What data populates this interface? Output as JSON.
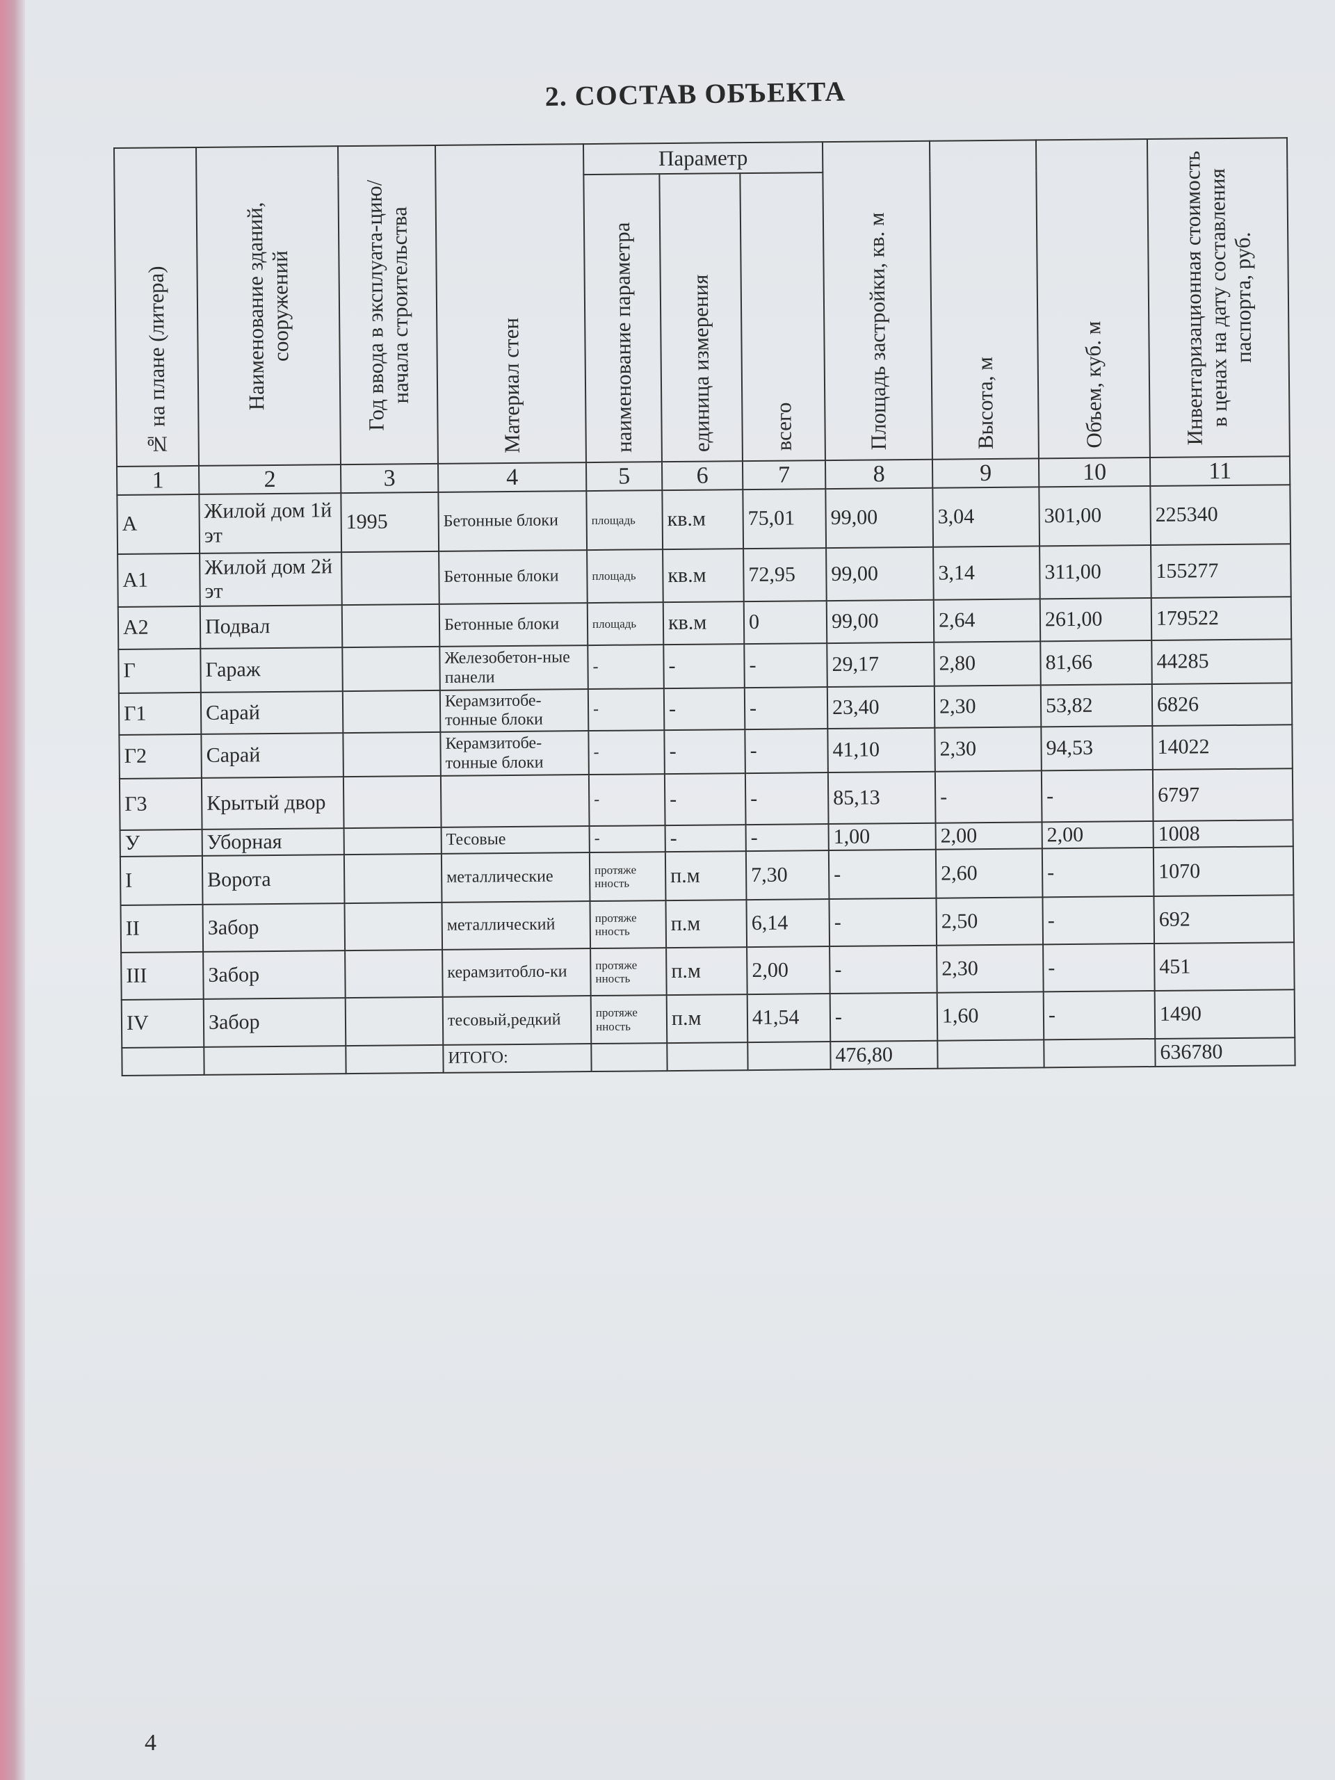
{
  "title": "2.   СОСТАВ ОБЪЕКТА",
  "headers": {
    "c1": "№ на плане (литера)",
    "c2": "Наименование зданий, сооружений",
    "c3": "Год ввода в эксплуата-цию/начала строительства",
    "c4": "Материал стен",
    "param": "Параметр",
    "c5": "наименование параметра",
    "c6": "единица измерения",
    "c7": "всего",
    "c8": "Площадь застройки, кв. м",
    "c9": "Высота, м",
    "c10": "Объем, куб. м",
    "c11": "Инвентаризационная стоимость в ценах на дату составления паспорта, руб."
  },
  "column_numbers": [
    "1",
    "2",
    "3",
    "4",
    "5",
    "6",
    "7",
    "8",
    "9",
    "10",
    "11"
  ],
  "rows": [
    [
      "А",
      "Жилой дом 1й эт",
      "1995",
      "Бетонные блоки",
      "площадь",
      "кв.м",
      "75,01",
      "99,00",
      "3,04",
      "301,00",
      "225340"
    ],
    [
      "А1",
      "Жилой дом 2й эт",
      "",
      "Бетонные блоки",
      "площадь",
      "кв.м",
      "72,95",
      "99,00",
      "3,14",
      "311,00",
      "155277"
    ],
    [
      "А2",
      "Подвал",
      "",
      "Бетонные блоки",
      "площадь",
      "кв.м",
      "0",
      "99,00",
      "2,64",
      "261,00",
      "179522"
    ],
    [
      "Г",
      "Гараж",
      "",
      "Железобетон-ные панели",
      "-",
      "-",
      "-",
      "29,17",
      "2,80",
      "81,66",
      "44285"
    ],
    [
      "Г1",
      "Сарай",
      "",
      "Керамзитобе-тонные блоки",
      "-",
      "-",
      "-",
      "23,40",
      "2,30",
      "53,82",
      "6826"
    ],
    [
      "Г2",
      "Сарай",
      "",
      "Керамзитобе-тонные блоки",
      "-",
      "-",
      "-",
      "41,10",
      "2,30",
      "94,53",
      "14022"
    ],
    [
      "Г3",
      "Крытый двор",
      "",
      "",
      "-",
      "-",
      "-",
      "85,13",
      "-",
      "-",
      "6797"
    ],
    [
      "У",
      "Уборная",
      "",
      "Тесовые",
      "-",
      "-",
      "-",
      "1,00",
      "2,00",
      "2,00",
      "1008"
    ],
    [
      "I",
      "Ворота",
      "",
      "металлические",
      "протяже нность",
      "п.м",
      "7,30",
      "-",
      "2,60",
      "-",
      "1070"
    ],
    [
      "II",
      "Забор",
      "",
      "металлический",
      "протяже нность",
      "п.м",
      "6,14",
      "-",
      "2,50",
      "-",
      "692"
    ],
    [
      "III",
      "Забор",
      "",
      "керамзитобло-ки",
      "протяже нность",
      "п.м",
      "2,00",
      "-",
      "2,30",
      "-",
      "451"
    ],
    [
      "IV",
      "Забор",
      "",
      "тесовый,редкий",
      "протяже нность",
      "п.м",
      "41,54",
      "-",
      "1,60",
      "-",
      "1490"
    ]
  ],
  "total": {
    "label": "ИТОГО:",
    "area": "476,80",
    "cost": "636780"
  },
  "page_number": "4"
}
